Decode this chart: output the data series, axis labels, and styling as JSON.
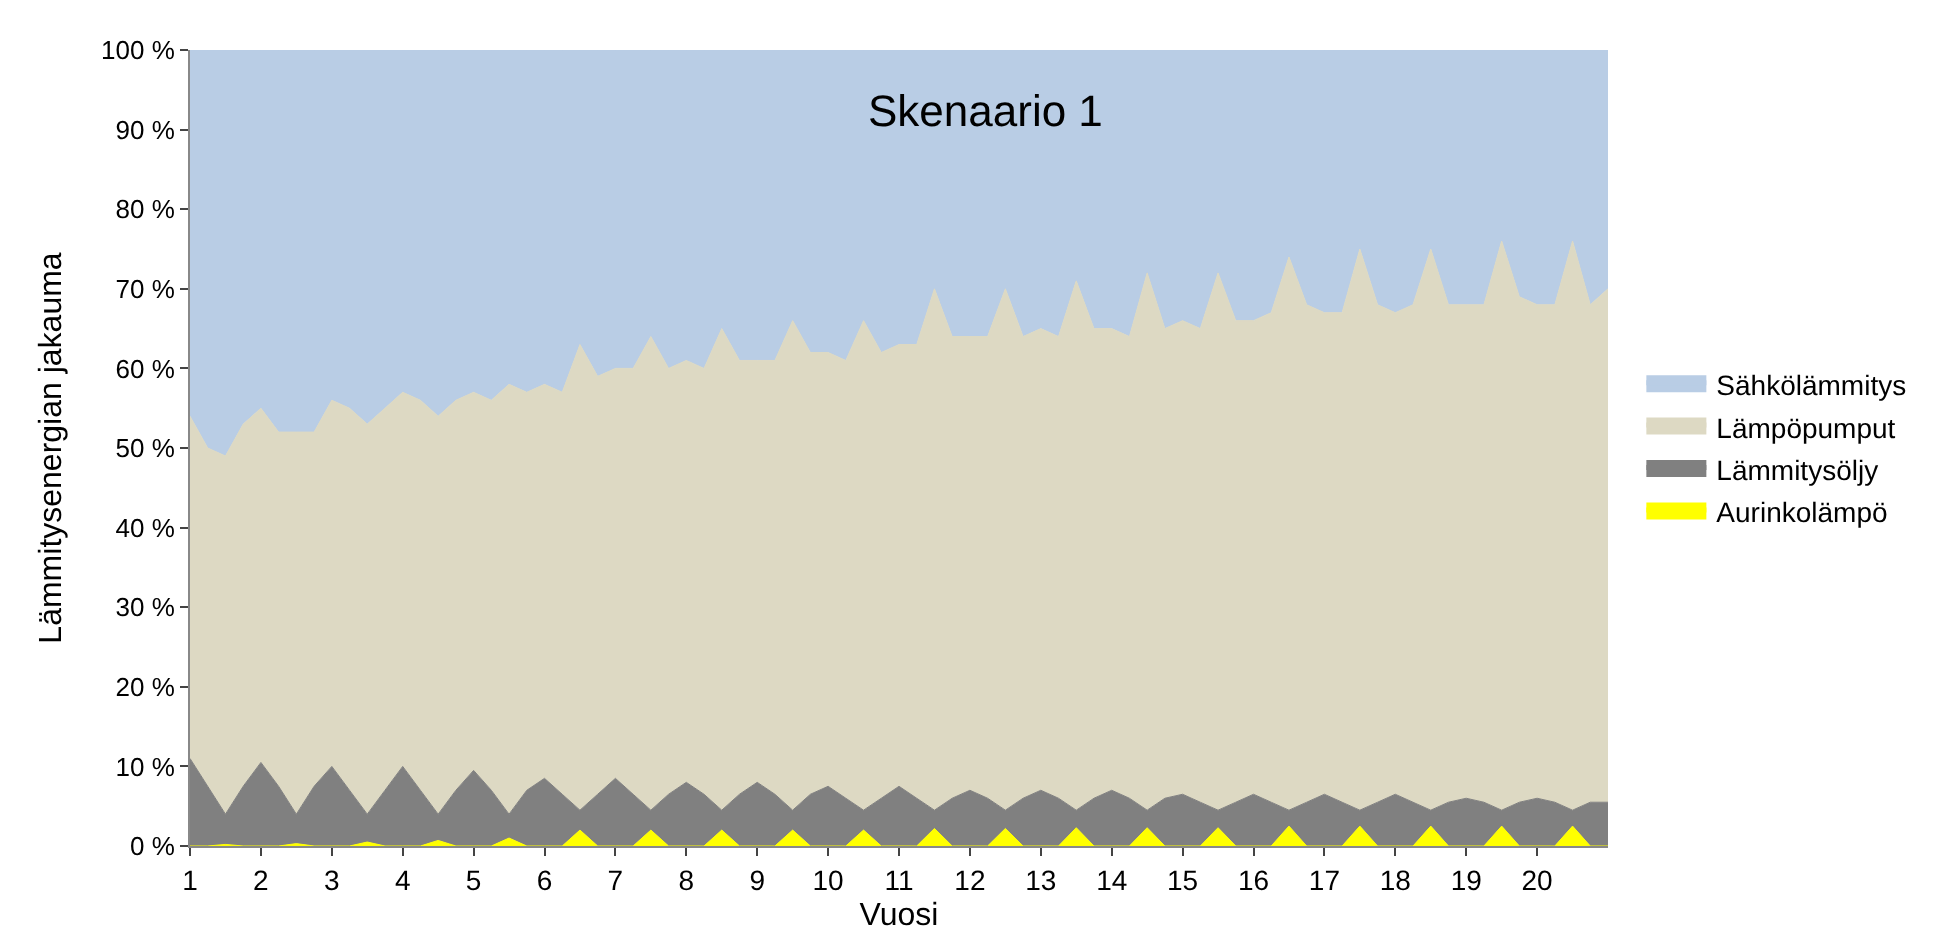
{
  "chart_data": {
    "type": "area",
    "stacked": true,
    "title": "Skenaario 1",
    "xlabel": "Vuosi",
    "ylabel": "Lämmitysenergian jakauma",
    "x": [
      1,
      1.25,
      1.5,
      1.75,
      2,
      2.25,
      2.5,
      2.75,
      3,
      3.25,
      3.5,
      3.75,
      4,
      4.25,
      4.5,
      4.75,
      5,
      5.25,
      5.5,
      5.75,
      6,
      6.25,
      6.5,
      6.75,
      7,
      7.25,
      7.5,
      7.75,
      8,
      8.25,
      8.5,
      8.75,
      9,
      9.25,
      9.5,
      9.75,
      10,
      10.25,
      10.5,
      10.75,
      11,
      11.25,
      11.5,
      11.75,
      12,
      12.25,
      12.5,
      12.75,
      13,
      13.25,
      13.5,
      13.75,
      14,
      14.25,
      14.5,
      14.75,
      15,
      15.25,
      15.5,
      15.75,
      16,
      16.25,
      16.5,
      16.75,
      17,
      17.25,
      17.5,
      17.75,
      18,
      18.25,
      18.5,
      18.75,
      19,
      19.25,
      19.5,
      19.75,
      20,
      20.25,
      20.5,
      20.75,
      21
    ],
    "series": [
      {
        "name": "Aurinkolämpö",
        "color": "#ffff00",
        "values": [
          0,
          0,
          0.2,
          0,
          0,
          0,
          0.3,
          0,
          0,
          0,
          0.5,
          0,
          0,
          0,
          0.7,
          0,
          0,
          0,
          1,
          0,
          0,
          0,
          2,
          0,
          0,
          0,
          2,
          0,
          0,
          0,
          2,
          0,
          0,
          0,
          2,
          0,
          0,
          0,
          2,
          0,
          0,
          0,
          2.2,
          0,
          0,
          0,
          2.2,
          0,
          0,
          0,
          2.3,
          0,
          0,
          0,
          2.3,
          0,
          0,
          0,
          2.3,
          0,
          0,
          0,
          2.5,
          0,
          0,
          0,
          2.5,
          0,
          0,
          0,
          2.5,
          0,
          0,
          0,
          2.5,
          0,
          0,
          0,
          2.5,
          0,
          0
        ]
      },
      {
        "name": "Lämmitysöljy",
        "color": "#808080",
        "values": [
          11,
          7.5,
          3.8,
          7.5,
          10.5,
          7.5,
          3.7,
          7.5,
          10,
          7,
          3.5,
          7,
          10,
          7,
          3.3,
          7,
          9.5,
          7,
          3,
          7,
          8.5,
          6.5,
          2.5,
          6.5,
          8.5,
          6.5,
          2.5,
          6.5,
          8,
          6.5,
          2.5,
          6.5,
          8,
          6.5,
          2.5,
          6.5,
          7.5,
          6,
          2.5,
          6,
          7.5,
          6,
          2.3,
          6,
          7,
          6,
          2.3,
          6,
          7,
          6,
          2.2,
          6,
          7,
          6,
          2.2,
          6,
          6.5,
          5.5,
          2.2,
          5.5,
          6.5,
          5.5,
          2,
          5.5,
          6.5,
          5.5,
          2,
          5.5,
          6.5,
          5.5,
          2,
          5.5,
          6,
          5.5,
          2,
          5.5,
          6,
          5.5,
          2,
          5.5,
          5.5
        ]
      },
      {
        "name": "Lämpöpumput",
        "color": "#ddd9c3",
        "values": [
          43,
          42.5,
          45,
          45.5,
          44.5,
          44.5,
          48,
          44.5,
          46,
          48,
          49,
          48,
          47,
          49,
          50,
          49,
          47.5,
          49,
          54,
          50,
          49.5,
          50.5,
          58.5,
          52.5,
          51.5,
          53.5,
          59.5,
          53.5,
          53,
          53.5,
          60.5,
          54.5,
          53,
          54.5,
          61.5,
          55.5,
          54.5,
          55,
          61.5,
          56,
          55.5,
          57,
          65.5,
          58,
          57,
          58,
          65.5,
          58,
          58,
          58,
          66.5,
          59,
          58,
          58,
          67.5,
          59,
          59.5,
          59.5,
          67.5,
          60.5,
          59.5,
          61.5,
          69.5,
          62.5,
          60.5,
          61.5,
          70.5,
          62.5,
          60.5,
          62.5,
          70.5,
          62.5,
          62,
          62.5,
          71.5,
          63.5,
          62,
          62.5,
          71.5,
          62.5,
          64.5
        ]
      },
      {
        "name": "Sähkölämmitys",
        "color": "#b9cde5",
        "values": [
          46,
          50,
          51,
          47,
          45,
          48,
          48,
          48,
          44,
          45,
          47,
          45,
          43,
          44,
          46,
          44,
          43,
          44,
          42,
          43,
          42,
          43,
          37,
          41,
          40,
          40,
          36,
          40,
          39,
          40,
          35,
          39,
          39,
          39,
          34,
          38,
          38,
          39,
          34,
          38,
          37,
          37,
          30,
          36,
          36,
          36,
          30,
          36,
          35,
          36,
          29,
          35,
          35,
          36,
          28,
          35,
          34,
          35,
          28,
          34,
          34,
          33,
          26,
          32,
          33,
          33,
          25,
          32,
          33,
          32,
          25,
          32,
          32,
          32,
          24,
          31,
          32,
          32,
          24,
          32,
          30
        ]
      }
    ],
    "xlim": [
      1,
      21
    ],
    "xticks": [
      1,
      2,
      3,
      4,
      5,
      6,
      7,
      8,
      9,
      10,
      11,
      12,
      13,
      14,
      15,
      16,
      17,
      18,
      19,
      20
    ],
    "ylim": [
      0,
      100
    ],
    "yticks": [
      {
        "value": 0,
        "label": "0 %"
      },
      {
        "value": 10,
        "label": "10 %"
      },
      {
        "value": 20,
        "label": "20 %"
      },
      {
        "value": 30,
        "label": "30 %"
      },
      {
        "value": 40,
        "label": "40 %"
      },
      {
        "value": 50,
        "label": "50 %"
      },
      {
        "value": 60,
        "label": "60 %"
      },
      {
        "value": 70,
        "label": "70 %"
      },
      {
        "value": 80,
        "label": "80 %"
      },
      {
        "value": 90,
        "label": "90 %"
      },
      {
        "value": 100,
        "label": "100 %"
      }
    ],
    "legend": "right"
  }
}
